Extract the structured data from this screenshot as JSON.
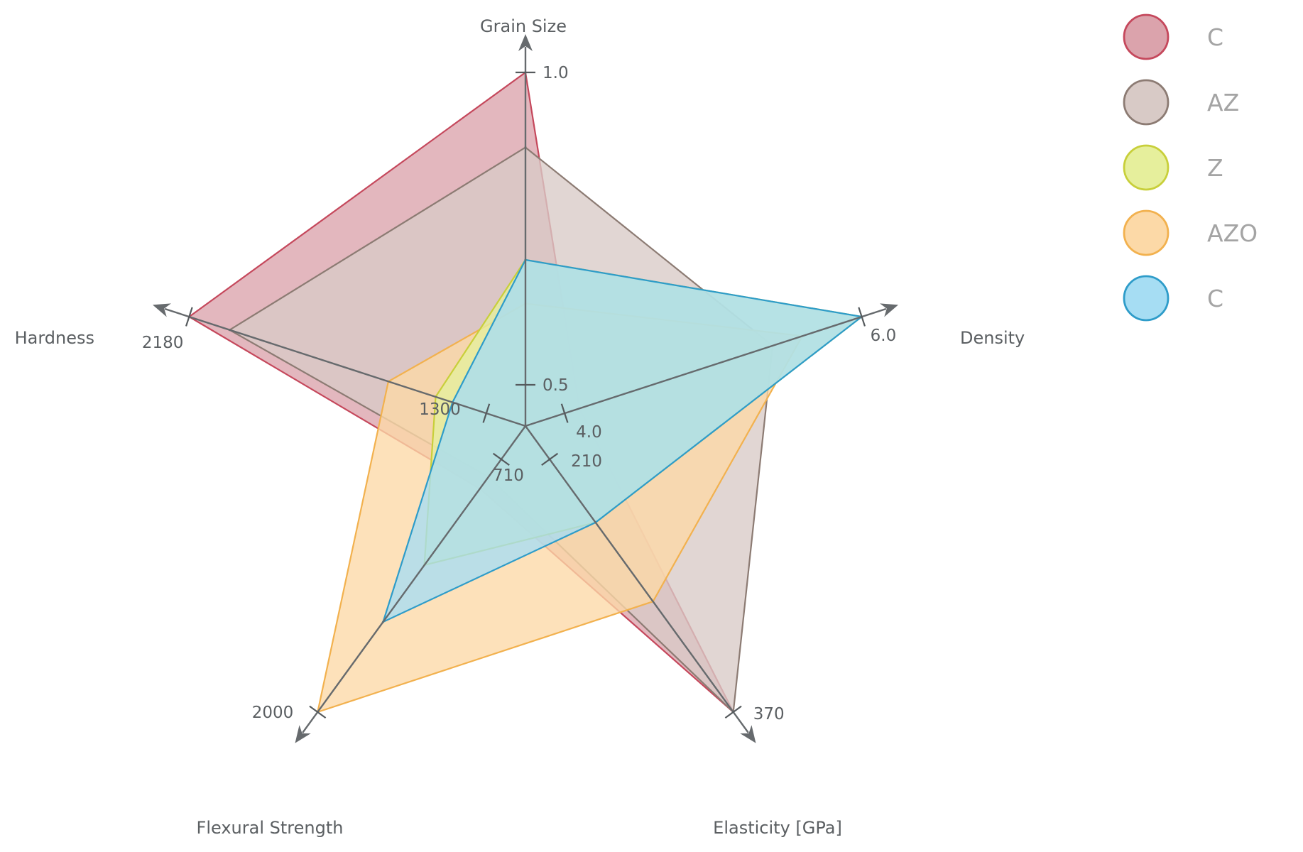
{
  "chart_data": {
    "type": "radar",
    "axes": [
      {
        "name": "Grain Size",
        "tick_labels": [
          "0.5",
          "1.0"
        ],
        "range": [
          0.5,
          1.0
        ]
      },
      {
        "name": "Density",
        "tick_labels": [
          "4.0",
          "6.0"
        ],
        "range": [
          4.0,
          6.0
        ]
      },
      {
        "name": "Elasticity [GPa]",
        "tick_labels": [
          "210",
          "370"
        ],
        "range": [
          210,
          370
        ]
      },
      {
        "name": "Flexural Strength",
        "tick_labels": [
          "710",
          "2000"
        ],
        "range": [
          710,
          2000
        ]
      },
      {
        "name": "Hardness",
        "tick_labels": [
          "1300",
          "2180"
        ],
        "range": [
          1300,
          2180
        ]
      }
    ],
    "series": [
      {
        "name": "C",
        "values": [
          1.0,
          4.1,
          370,
          860,
          2180
        ],
        "color": "#c5485c",
        "fill": "#dba3ac"
      },
      {
        "name": "AZ",
        "values": [
          0.88,
          5.4,
          370,
          800,
          2060
        ],
        "color": "#8c7b73",
        "fill": "#d8cac6"
      },
      {
        "name": "Z",
        "values": [
          0.7,
          6.0,
          250,
          1250,
          1450
        ],
        "color": "#c8cf3a",
        "fill": "#e6ef9c"
      },
      {
        "name": "AZO",
        "values": [
          0.63,
          5.6,
          300,
          2000,
          1590
        ],
        "color": "#f2b14e",
        "fill": "#fcd9a7"
      },
      {
        "name": "C",
        "values": [
          0.7,
          6.0,
          250,
          1540,
          1400
        ],
        "color": "#2e9cc9",
        "fill": "#a6ddf3"
      }
    ],
    "draw_order": [
      0,
      1,
      3,
      2,
      4
    ],
    "legend": {
      "placement": "top-right"
    },
    "title": "",
    "grid": false
  }
}
